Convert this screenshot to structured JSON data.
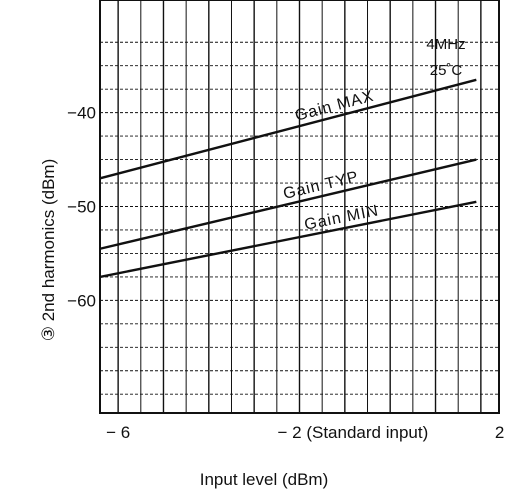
{
  "chart_data": {
    "type": "line",
    "title": "",
    "xlabel": "Input level (dBm)",
    "ylabel": "③ 2nd harmonics (dBm)",
    "xlim": [
      -6.4,
      2.4
    ],
    "ylim": [
      -72,
      -28
    ],
    "x_ticks": [
      {
        "value": -6,
        "label": "− 6"
      },
      {
        "value": -2,
        "label": "− 2 (Standard input)"
      },
      {
        "value": 2,
        "label": "2"
      }
    ],
    "y_ticks": [
      {
        "value": -40,
        "label": "−40"
      },
      {
        "value": -50,
        "label": "−50"
      },
      {
        "value": -60,
        "label": "−60"
      }
    ],
    "conditions": [
      "4MHz",
      "25˚C"
    ],
    "series": [
      {
        "name": "Gain MAX",
        "x": [
          -6.4,
          1.9
        ],
        "y": [
          -47,
          -36.5
        ]
      },
      {
        "name": "Gain TYP",
        "x": [
          -6.4,
          1.9
        ],
        "y": [
          -54.5,
          -45
        ]
      },
      {
        "name": "Gain MIN",
        "x": [
          -6.4,
          1.9
        ],
        "y": [
          -57.5,
          -49.5
        ]
      }
    ],
    "grid": true
  }
}
